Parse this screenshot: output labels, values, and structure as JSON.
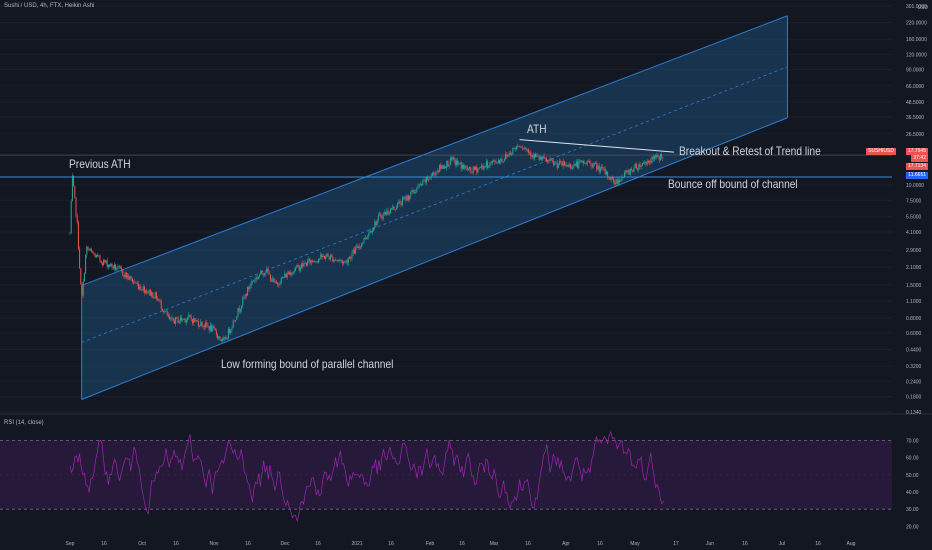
{
  "header": {
    "title": "Sushi / USD, 4h, FTX, Heikin Ashi",
    "rsi_title": "RSI (14, close)",
    "price_unit": "USD"
  },
  "price_badges": {
    "symbol": "SUSHIUSD",
    "last": "17.7545",
    "countdown": "37:42",
    "ref": "17.7134",
    "previous_ath": "11.6651"
  },
  "annotations": {
    "previous_ath": "Previous ATH",
    "ath": "ATH",
    "breakout": "Breakout & Retest of Trend line",
    "bounce": "Bounce off bound of channel",
    "low_bound": "Low forming bound of parallel channel"
  },
  "colors": {
    "background": "#131722",
    "channel_fill": "#1e4a73",
    "channel_line": "#2a7fd4",
    "candle_up": "#26a69a",
    "candle_down": "#ef5350",
    "rsi_line": "#9c27b0",
    "rsi_band": "#2a1a3d",
    "badge_red": "#ef5350",
    "badge_blue": "#2962ff"
  },
  "chart_data": {
    "type": "candlestick",
    "title": "Sushi / USD, 4h, FTX, Heikin Ashi",
    "y_scale": "log",
    "y_ticks": [
      "0.1340",
      "0.1800",
      "0.2400",
      "0.3200",
      "0.4400",
      "0.6000",
      "0.8000",
      "1.1000",
      "1.5000",
      "2.1000",
      "2.9000",
      "4.1000",
      "5.5000",
      "7.5000",
      "10.0000",
      "26.5000",
      "36.5000",
      "48.5000",
      "66.0000",
      "90.0000",
      "120.0000",
      "160.0000",
      "220.0000",
      "301.0000"
    ],
    "y_range": [
      0.134,
      301
    ],
    "x_ticks": [
      "Sep",
      "16",
      "Oct",
      "16",
      "Nov",
      "16",
      "Dec",
      "16",
      "2021",
      "16",
      "Feb",
      "16",
      "Mar",
      "16",
      "Apr",
      "16",
      "May",
      "17",
      "Jun",
      "16",
      "Jul",
      "16",
      "Aug"
    ],
    "price_path": [
      {
        "date": "2020-09-01",
        "price": 4.0
      },
      {
        "date": "2020-09-02",
        "price": 11.5
      },
      {
        "date": "2020-09-04",
        "price": 5.0
      },
      {
        "date": "2020-09-06",
        "price": 1.1
      },
      {
        "date": "2020-09-08",
        "price": 3.0
      },
      {
        "date": "2020-09-14",
        "price": 2.4
      },
      {
        "date": "2020-09-22",
        "price": 2.0
      },
      {
        "date": "2020-09-30",
        "price": 1.5
      },
      {
        "date": "2020-10-08",
        "price": 1.2
      },
      {
        "date": "2020-10-14",
        "price": 0.75
      },
      {
        "date": "2020-10-22",
        "price": 0.8
      },
      {
        "date": "2020-11-01",
        "price": 0.65
      },
      {
        "date": "2020-11-06",
        "price": 0.5
      },
      {
        "date": "2020-11-12",
        "price": 0.9
      },
      {
        "date": "2020-11-18",
        "price": 1.6
      },
      {
        "date": "2020-11-24",
        "price": 2.0
      },
      {
        "date": "2020-11-28",
        "price": 1.5
      },
      {
        "date": "2020-12-04",
        "price": 1.9
      },
      {
        "date": "2020-12-12",
        "price": 2.3
      },
      {
        "date": "2020-12-20",
        "price": 2.6
      },
      {
        "date": "2020-12-28",
        "price": 2.3
      },
      {
        "date": "2021-01-04",
        "price": 3.3
      },
      {
        "date": "2021-01-12",
        "price": 5.5
      },
      {
        "date": "2021-01-18",
        "price": 6.5
      },
      {
        "date": "2021-01-24",
        "price": 8.0
      },
      {
        "date": "2021-02-01",
        "price": 11.0
      },
      {
        "date": "2021-02-06",
        "price": 13.5
      },
      {
        "date": "2021-02-12",
        "price": 16.0
      },
      {
        "date": "2021-02-20",
        "price": 13.0
      },
      {
        "date": "2021-02-28",
        "price": 15.0
      },
      {
        "date": "2021-03-06",
        "price": 16.5
      },
      {
        "date": "2021-03-13",
        "price": 22.0
      },
      {
        "date": "2021-03-20",
        "price": 17.0
      },
      {
        "date": "2021-03-28",
        "price": 15.0
      },
      {
        "date": "2021-04-04",
        "price": 14.5
      },
      {
        "date": "2021-04-12",
        "price": 15.5
      },
      {
        "date": "2021-04-18",
        "price": 13.0
      },
      {
        "date": "2021-04-23",
        "price": 10.5
      },
      {
        "date": "2021-04-30",
        "price": 13.5
      },
      {
        "date": "2021-05-06",
        "price": 15.5
      },
      {
        "date": "2021-05-10",
        "price": 16.5
      },
      {
        "date": "2021-05-14",
        "price": 17.7
      }
    ],
    "channel": {
      "upper": [
        {
          "date": "2020-09-14",
          "price": 1.7
        },
        {
          "date": "2021-07-06",
          "price": 250
        }
      ],
      "lower": [
        {
          "date": "2020-09-06",
          "price": 0.17
        },
        {
          "date": "2021-07-06",
          "price": 36
        }
      ]
    },
    "horizontal_levels": [
      11.6651,
      17.7134
    ],
    "trend_line": [
      {
        "date": "2021-03-13",
        "price": 22.0
      },
      {
        "date": "2021-05-14",
        "price": 17.7
      }
    ],
    "rsi": {
      "name": "RSI (14, close)",
      "y_ticks": [
        "20.00",
        "30.00",
        "40.00",
        "50.00",
        "60.00",
        "70.00"
      ],
      "overbought": 70,
      "oversold": 30
    }
  }
}
